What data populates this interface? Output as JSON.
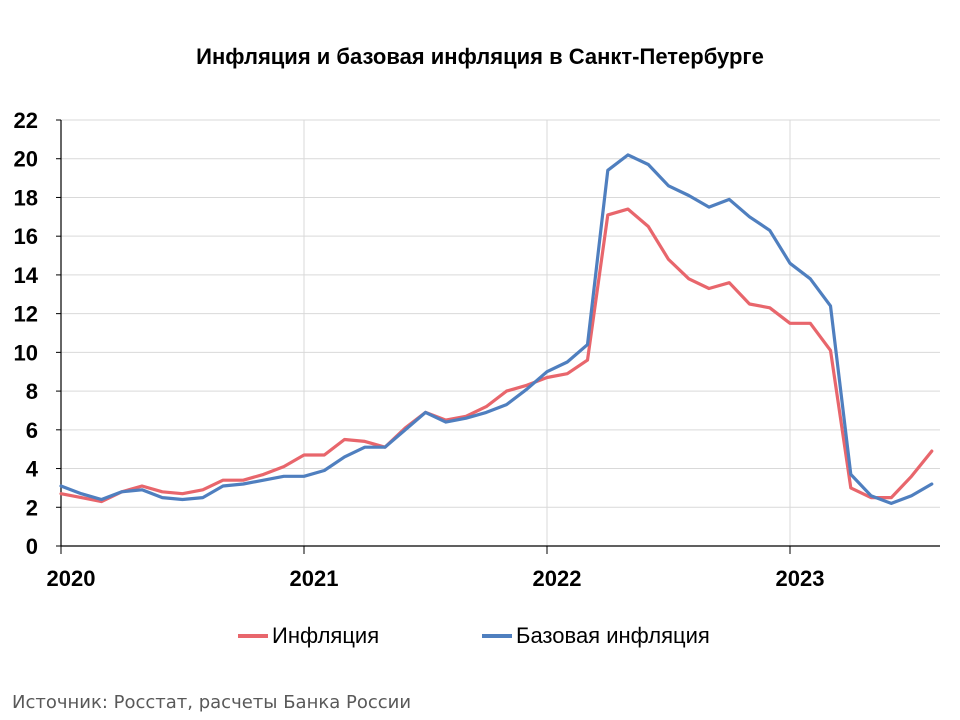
{
  "chart_data": {
    "type": "line",
    "title": "Инфляция и базовая инфляция в Санкт-Петербурге",
    "xlabel": "",
    "ylabel": "",
    "ylim": [
      0,
      22
    ],
    "y_ticks": [
      0,
      2,
      4,
      6,
      8,
      10,
      12,
      14,
      16,
      18,
      20,
      22
    ],
    "x_tick_labels": [
      "2020",
      "2021",
      "2022",
      "2023"
    ],
    "x_start": "2020-01",
    "x_end": "2023-07",
    "grid": true,
    "legend_position": "bottom",
    "series": [
      {
        "name": "Инфляция",
        "color": "#e8666c",
        "values": [
          2.7,
          2.5,
          2.3,
          2.8,
          3.1,
          2.8,
          2.7,
          2.9,
          3.4,
          3.4,
          3.7,
          4.1,
          4.7,
          4.7,
          5.5,
          5.4,
          5.1,
          6.1,
          6.9,
          6.5,
          6.7,
          7.2,
          8.0,
          8.3,
          8.7,
          8.9,
          9.6,
          17.1,
          17.4,
          16.5,
          14.8,
          13.8,
          13.3,
          13.6,
          12.5,
          12.3,
          11.5,
          11.5,
          10.1,
          3.0,
          2.5,
          2.5,
          3.6,
          4.9
        ],
        "x_start": "2020-01"
      },
      {
        "name": "Базовая инфляция",
        "color": "#4f7fbf",
        "values": [
          3.1,
          2.7,
          2.4,
          2.8,
          2.9,
          2.5,
          2.4,
          2.5,
          3.1,
          3.2,
          3.4,
          3.6,
          3.6,
          3.9,
          4.6,
          5.1,
          5.1,
          6.0,
          6.9,
          6.4,
          6.6,
          6.9,
          7.3,
          8.1,
          9.0,
          9.5,
          10.4,
          19.4,
          20.2,
          19.7,
          18.6,
          18.1,
          17.5,
          17.9,
          17.0,
          16.3,
          14.6,
          13.8,
          12.4,
          3.7,
          2.6,
          2.2,
          2.6,
          3.2
        ],
        "x_start": "2020-01"
      }
    ]
  },
  "source_note": "Источник: Росстат, расчеты Банка России"
}
